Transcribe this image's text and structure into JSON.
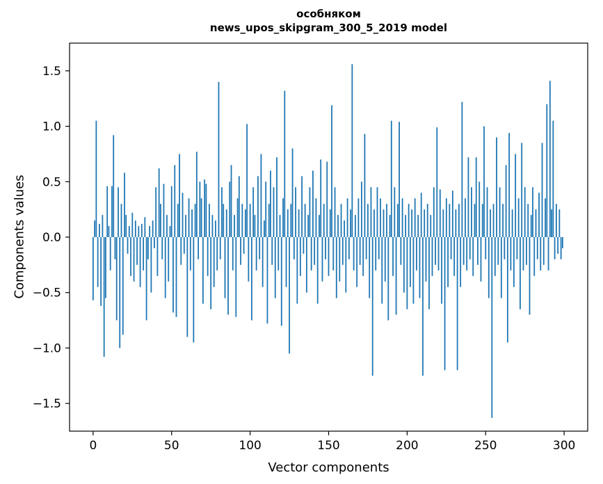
{
  "figure": {
    "background": "#ffffff",
    "bar_color": "#1f77b4",
    "spine_color": "#000000"
  },
  "chart_data": {
    "type": "bar",
    "title": "особняком",
    "subtitle": "news_upos_skipgram_300_5_2019 model",
    "xlabel": "Vector components",
    "ylabel": "Components values",
    "xlim": [
      -15,
      315
    ],
    "ylim": [
      -1.75,
      1.75
    ],
    "xticks": [
      0,
      50,
      100,
      150,
      200,
      250,
      300
    ],
    "yticks": [
      -1.5,
      -1.0,
      -0.5,
      0.0,
      0.5,
      1.0,
      1.5
    ],
    "ytick_labels": [
      "−1.5",
      "−1.0",
      "−0.5",
      "0.0",
      "0.5",
      "1.0",
      "1.5"
    ],
    "grid": false,
    "legend": null,
    "x_start": 0,
    "values": [
      -0.57,
      0.15,
      1.05,
      -0.45,
      0.12,
      -0.62,
      0.2,
      -1.08,
      -0.55,
      0.46,
      0.1,
      -0.3,
      0.46,
      0.92,
      -0.2,
      -0.75,
      0.45,
      -1.0,
      0.3,
      -0.88,
      0.58,
      0.2,
      -0.15,
      0.1,
      -0.35,
      0.22,
      -0.4,
      0.15,
      -0.25,
      0.1,
      -0.45,
      0.12,
      -0.3,
      0.18,
      -0.75,
      -0.2,
      0.1,
      -0.5,
      0.15,
      -0.1,
      0.45,
      -0.35,
      0.62,
      0.3,
      -0.2,
      0.48,
      -0.55,
      0.2,
      -0.4,
      0.1,
      0.46,
      -0.68,
      0.65,
      -0.72,
      0.3,
      0.75,
      -0.25,
      0.4,
      -0.15,
      0.2,
      -0.9,
      0.35,
      -0.3,
      0.25,
      -0.95,
      0.3,
      0.77,
      -0.2,
      0.5,
      0.35,
      -0.6,
      0.52,
      0.48,
      -0.35,
      0.3,
      -0.65,
      0.2,
      -0.45,
      0.15,
      -0.3,
      1.4,
      -0.2,
      0.45,
      0.3,
      -0.55,
      0.25,
      -0.7,
      0.5,
      0.65,
      -0.3,
      0.2,
      -0.72,
      0.35,
      0.55,
      -0.25,
      0.3,
      -0.15,
      0.25,
      1.02,
      -0.4,
      0.3,
      -0.75,
      0.45,
      0.2,
      -0.3,
      0.55,
      -0.2,
      0.75,
      -0.45,
      0.15,
      0.5,
      -0.78,
      0.3,
      0.6,
      -0.25,
      0.45,
      -0.55,
      0.72,
      -0.3,
      0.2,
      -0.8,
      0.35,
      1.32,
      -0.45,
      0.25,
      -1.05,
      0.3,
      0.8,
      -0.2,
      0.45,
      -0.6,
      0.25,
      -0.35,
      0.55,
      -0.15,
      0.3,
      -0.5,
      0.2,
      0.45,
      -0.3,
      0.6,
      -0.25,
      0.35,
      -0.6,
      0.2,
      0.7,
      -0.4,
      0.3,
      -0.2,
      0.68,
      -0.35,
      0.25,
      1.19,
      -0.3,
      0.45,
      -0.55,
      0.2,
      -0.4,
      0.3,
      -0.25,
      0.15,
      -0.5,
      0.35,
      -0.2,
      0.25,
      1.56,
      -0.3,
      0.2,
      -0.45,
      0.35,
      -0.25,
      0.5,
      -0.35,
      0.93,
      -0.2,
      0.3,
      -0.55,
      0.45,
      -1.25,
      0.25,
      -0.3,
      0.45,
      -0.2,
      0.35,
      -0.6,
      0.25,
      -0.4,
      0.3,
      -0.75,
      0.2,
      1.05,
      -0.35,
      0.45,
      -0.7,
      0.3,
      1.04,
      -0.25,
      0.35,
      -0.5,
      0.2,
      -0.65,
      0.3,
      -0.45,
      0.25,
      -0.6,
      0.35,
      -0.3,
      0.2,
      -0.55,
      0.4,
      -1.25,
      0.25,
      -0.4,
      0.3,
      -0.65,
      0.2,
      -0.35,
      0.45,
      -0.25,
      0.99,
      -0.3,
      0.43,
      -0.6,
      0.25,
      -1.2,
      0.35,
      -0.45,
      0.3,
      -0.2,
      0.42,
      -0.35,
      0.25,
      -1.2,
      0.3,
      -0.45,
      1.22,
      -0.25,
      0.35,
      -0.3,
      0.72,
      -0.2,
      0.45,
      -0.35,
      0.3,
      0.72,
      -0.25,
      0.5,
      -0.4,
      0.3,
      1.0,
      -0.2,
      0.45,
      -0.55,
      0.25,
      -1.63,
      0.3,
      -0.35,
      0.9,
      -0.25,
      0.45,
      -0.55,
      0.3,
      -0.2,
      0.65,
      -0.95,
      0.94,
      -0.3,
      0.25,
      -0.45,
      0.75,
      -0.2,
      0.35,
      -0.65,
      0.85,
      -0.3,
      0.45,
      -0.25,
      0.3,
      -0.7,
      0.2,
      0.45,
      -0.35,
      0.25,
      -0.2,
      0.4,
      -0.3,
      0.85,
      -0.25,
      0.35,
      1.2,
      -0.3,
      1.41,
      0.25,
      1.05,
      -0.2,
      0.3,
      -0.15,
      0.25,
      -0.2,
      -0.1
    ]
  }
}
